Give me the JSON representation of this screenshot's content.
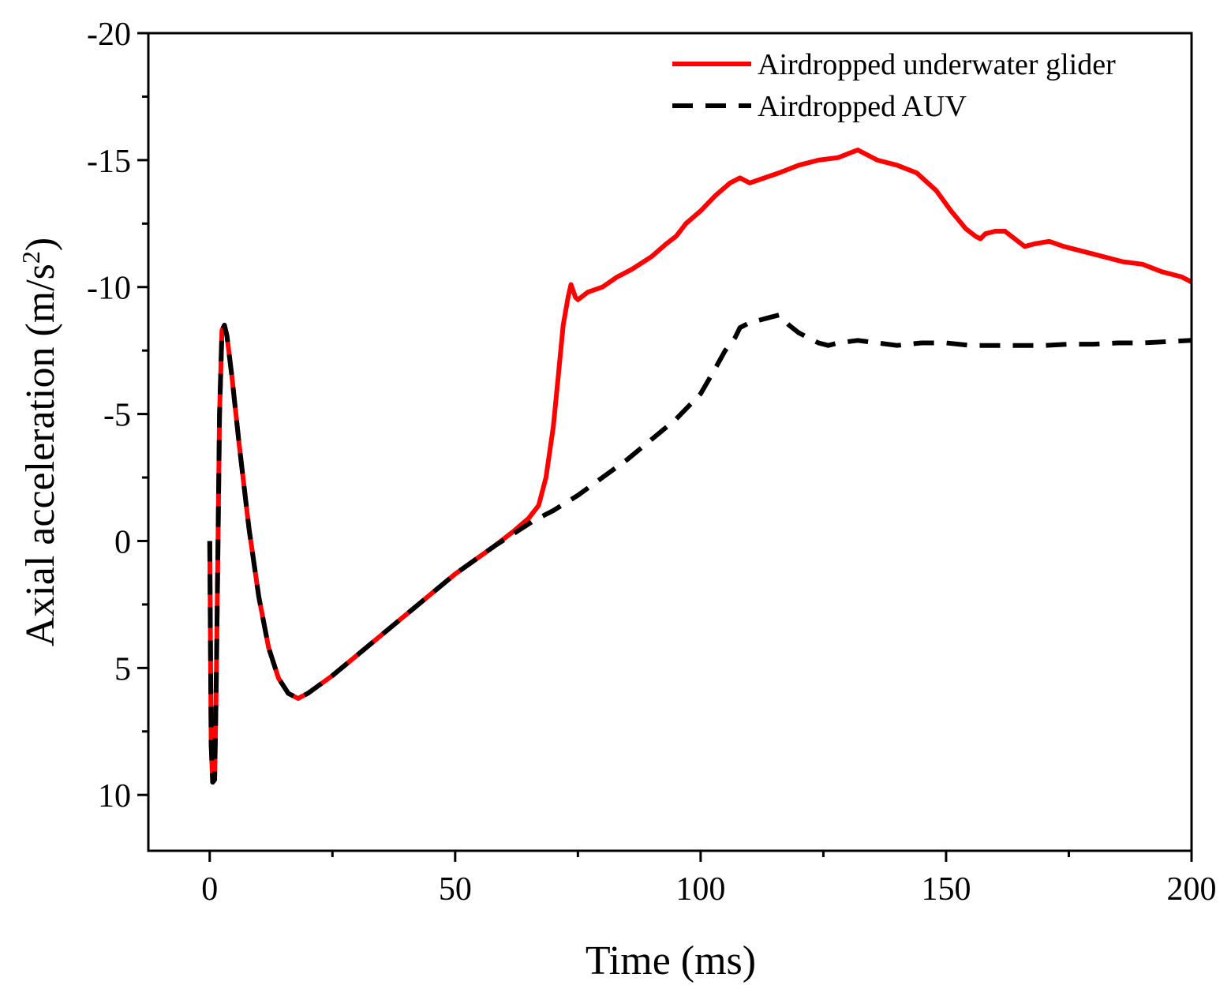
{
  "chart_data": {
    "type": "line",
    "title": "",
    "xlabel": "Time (ms)",
    "ylabel": "Axial acceleration (m/s",
    "ylabel_superscript": "2",
    "ylabel_suffix": ")",
    "xlim": [
      -12.5,
      200
    ],
    "ylim": [
      12.2,
      -20
    ],
    "y_inverted": true,
    "xticks": [
      0,
      50,
      100,
      150,
      200
    ],
    "xtick_labels": [
      "0",
      "50",
      "100",
      "150",
      "200"
    ],
    "yticks": [
      -20,
      -15,
      -10,
      -5,
      0,
      5,
      10
    ],
    "ytick_labels": [
      "-20",
      "-15",
      "-10",
      "-5",
      "0",
      "5",
      "10"
    ],
    "grid": false,
    "legend_position": "top-right",
    "series": [
      {
        "name": "Airdropped underwater glider",
        "color": "#ff0000",
        "dash": "solid",
        "points": [
          [
            0,
            0
          ],
          [
            0.3,
            8
          ],
          [
            0.6,
            9.5
          ],
          [
            1.0,
            9.4
          ],
          [
            1.3,
            6
          ],
          [
            1.7,
            0
          ],
          [
            2.0,
            -5
          ],
          [
            2.5,
            -8.3
          ],
          [
            3.0,
            -8.5
          ],
          [
            3.5,
            -8.1
          ],
          [
            4.5,
            -6.5
          ],
          [
            6,
            -3.8
          ],
          [
            8,
            -0.5
          ],
          [
            10,
            2.2
          ],
          [
            12,
            4.2
          ],
          [
            14,
            5.4
          ],
          [
            16,
            6.0
          ],
          [
            18,
            6.2
          ],
          [
            20,
            6.0
          ],
          [
            25,
            5.3
          ],
          [
            30,
            4.5
          ],
          [
            40,
            2.9
          ],
          [
            50,
            1.3
          ],
          [
            58,
            0.2
          ],
          [
            62,
            -0.4
          ],
          [
            65,
            -0.9
          ],
          [
            67,
            -1.4
          ],
          [
            68.5,
            -2.5
          ],
          [
            70,
            -4.5
          ],
          [
            71,
            -6.5
          ],
          [
            72,
            -8.5
          ],
          [
            73,
            -9.6
          ],
          [
            73.6,
            -10.1
          ],
          [
            74.5,
            -9.6
          ],
          [
            75,
            -9.5
          ],
          [
            77,
            -9.8
          ],
          [
            80,
            -10.0
          ],
          [
            83,
            -10.4
          ],
          [
            86,
            -10.7
          ],
          [
            90,
            -11.2
          ],
          [
            93,
            -11.7
          ],
          [
            95,
            -12.0
          ],
          [
            97,
            -12.5
          ],
          [
            100,
            -13.0
          ],
          [
            103,
            -13.6
          ],
          [
            106,
            -14.1
          ],
          [
            108,
            -14.3
          ],
          [
            110,
            -14.1
          ],
          [
            113,
            -14.3
          ],
          [
            116,
            -14.5
          ],
          [
            120,
            -14.8
          ],
          [
            124,
            -15.0
          ],
          [
            128,
            -15.1
          ],
          [
            132,
            -15.4
          ],
          [
            136,
            -15.0
          ],
          [
            140,
            -14.8
          ],
          [
            144,
            -14.5
          ],
          [
            148,
            -13.8
          ],
          [
            151,
            -13.0
          ],
          [
            154,
            -12.3
          ],
          [
            156,
            -12.0
          ],
          [
            157,
            -11.9
          ],
          [
            158,
            -12.1
          ],
          [
            160,
            -12.2
          ],
          [
            162,
            -12.2
          ],
          [
            164,
            -11.9
          ],
          [
            166,
            -11.6
          ],
          [
            168,
            -11.7
          ],
          [
            171,
            -11.8
          ],
          [
            174,
            -11.6
          ],
          [
            178,
            -11.4
          ],
          [
            182,
            -11.2
          ],
          [
            186,
            -11.0
          ],
          [
            190,
            -10.9
          ],
          [
            194,
            -10.6
          ],
          [
            198,
            -10.4
          ],
          [
            200,
            -10.2
          ]
        ]
      },
      {
        "name": "Airdropped AUV",
        "color": "#000000",
        "dash": "dashed",
        "points": [
          [
            0,
            0
          ],
          [
            0.3,
            8
          ],
          [
            0.6,
            9.5
          ],
          [
            1.0,
            9.4
          ],
          [
            1.3,
            6
          ],
          [
            1.7,
            0
          ],
          [
            2.0,
            -5
          ],
          [
            2.5,
            -8.3
          ],
          [
            3.0,
            -8.5
          ],
          [
            3.5,
            -8.1
          ],
          [
            4.5,
            -6.5
          ],
          [
            6,
            -3.8
          ],
          [
            8,
            -0.5
          ],
          [
            10,
            2.2
          ],
          [
            12,
            4.2
          ],
          [
            14,
            5.4
          ],
          [
            16,
            6.0
          ],
          [
            18,
            6.2
          ],
          [
            20,
            6.0
          ],
          [
            25,
            5.3
          ],
          [
            30,
            4.5
          ],
          [
            40,
            2.9
          ],
          [
            50,
            1.3
          ],
          [
            58,
            0.2
          ],
          [
            62,
            -0.3
          ],
          [
            66,
            -0.8
          ],
          [
            70,
            -1.2
          ],
          [
            75,
            -1.8
          ],
          [
            80,
            -2.5
          ],
          [
            85,
            -3.2
          ],
          [
            90,
            -4.0
          ],
          [
            95,
            -4.8
          ],
          [
            100,
            -5.8
          ],
          [
            103,
            -6.8
          ],
          [
            105,
            -7.5
          ],
          [
            107,
            -8.0
          ],
          [
            108,
            -8.4
          ],
          [
            110,
            -8.6
          ],
          [
            112,
            -8.7
          ],
          [
            114,
            -8.8
          ],
          [
            116,
            -8.9
          ],
          [
            118,
            -8.5
          ],
          [
            120,
            -8.2
          ],
          [
            122,
            -8.0
          ],
          [
            124,
            -7.8
          ],
          [
            126,
            -7.7
          ],
          [
            128,
            -7.8
          ],
          [
            132,
            -7.9
          ],
          [
            136,
            -7.8
          ],
          [
            140,
            -7.7
          ],
          [
            145,
            -7.8
          ],
          [
            150,
            -7.8
          ],
          [
            155,
            -7.7
          ],
          [
            160,
            -7.7
          ],
          [
            165,
            -7.7
          ],
          [
            170,
            -7.7
          ],
          [
            175,
            -7.75
          ],
          [
            180,
            -7.75
          ],
          [
            185,
            -7.8
          ],
          [
            190,
            -7.8
          ],
          [
            195,
            -7.85
          ],
          [
            200,
            -7.9
          ]
        ]
      }
    ]
  }
}
